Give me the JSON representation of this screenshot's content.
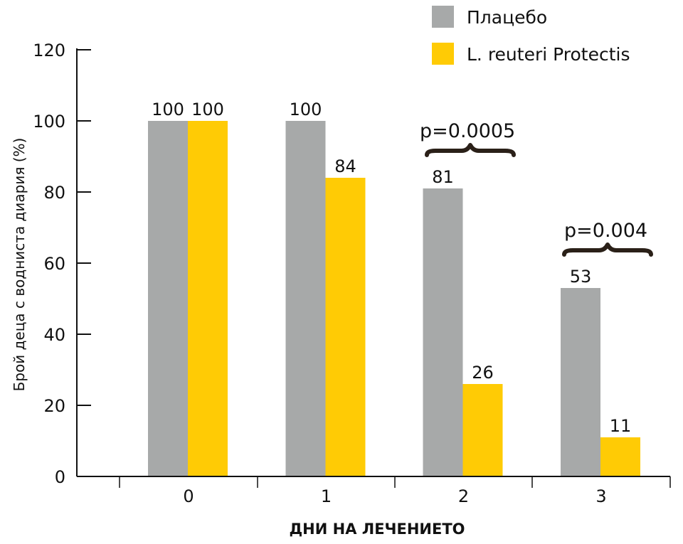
{
  "chart_data": {
    "type": "bar",
    "title": "",
    "xlabel": "ДНИ НА ЛЕЧЕНИЕТО",
    "ylabel": "Брой деца с воднистa диария (%)",
    "ylim": [
      0,
      120
    ],
    "yticks": [
      0,
      20,
      40,
      60,
      80,
      100,
      120
    ],
    "categories": [
      "0",
      "1",
      "2",
      "3"
    ],
    "series": [
      {
        "name": "Плацебо",
        "values": [
          100,
          100,
          81,
          53
        ],
        "color": "#a7a9a9"
      },
      {
        "name": "L. reuteri Protectis",
        "values": [
          100,
          84,
          26,
          11
        ],
        "color": "#ffcb05"
      }
    ],
    "legend_position": "top-right",
    "annotations": [
      {
        "text": "p=0.0005",
        "category_index": 2
      },
      {
        "text": "p=0.004",
        "category_index": 3
      }
    ]
  }
}
